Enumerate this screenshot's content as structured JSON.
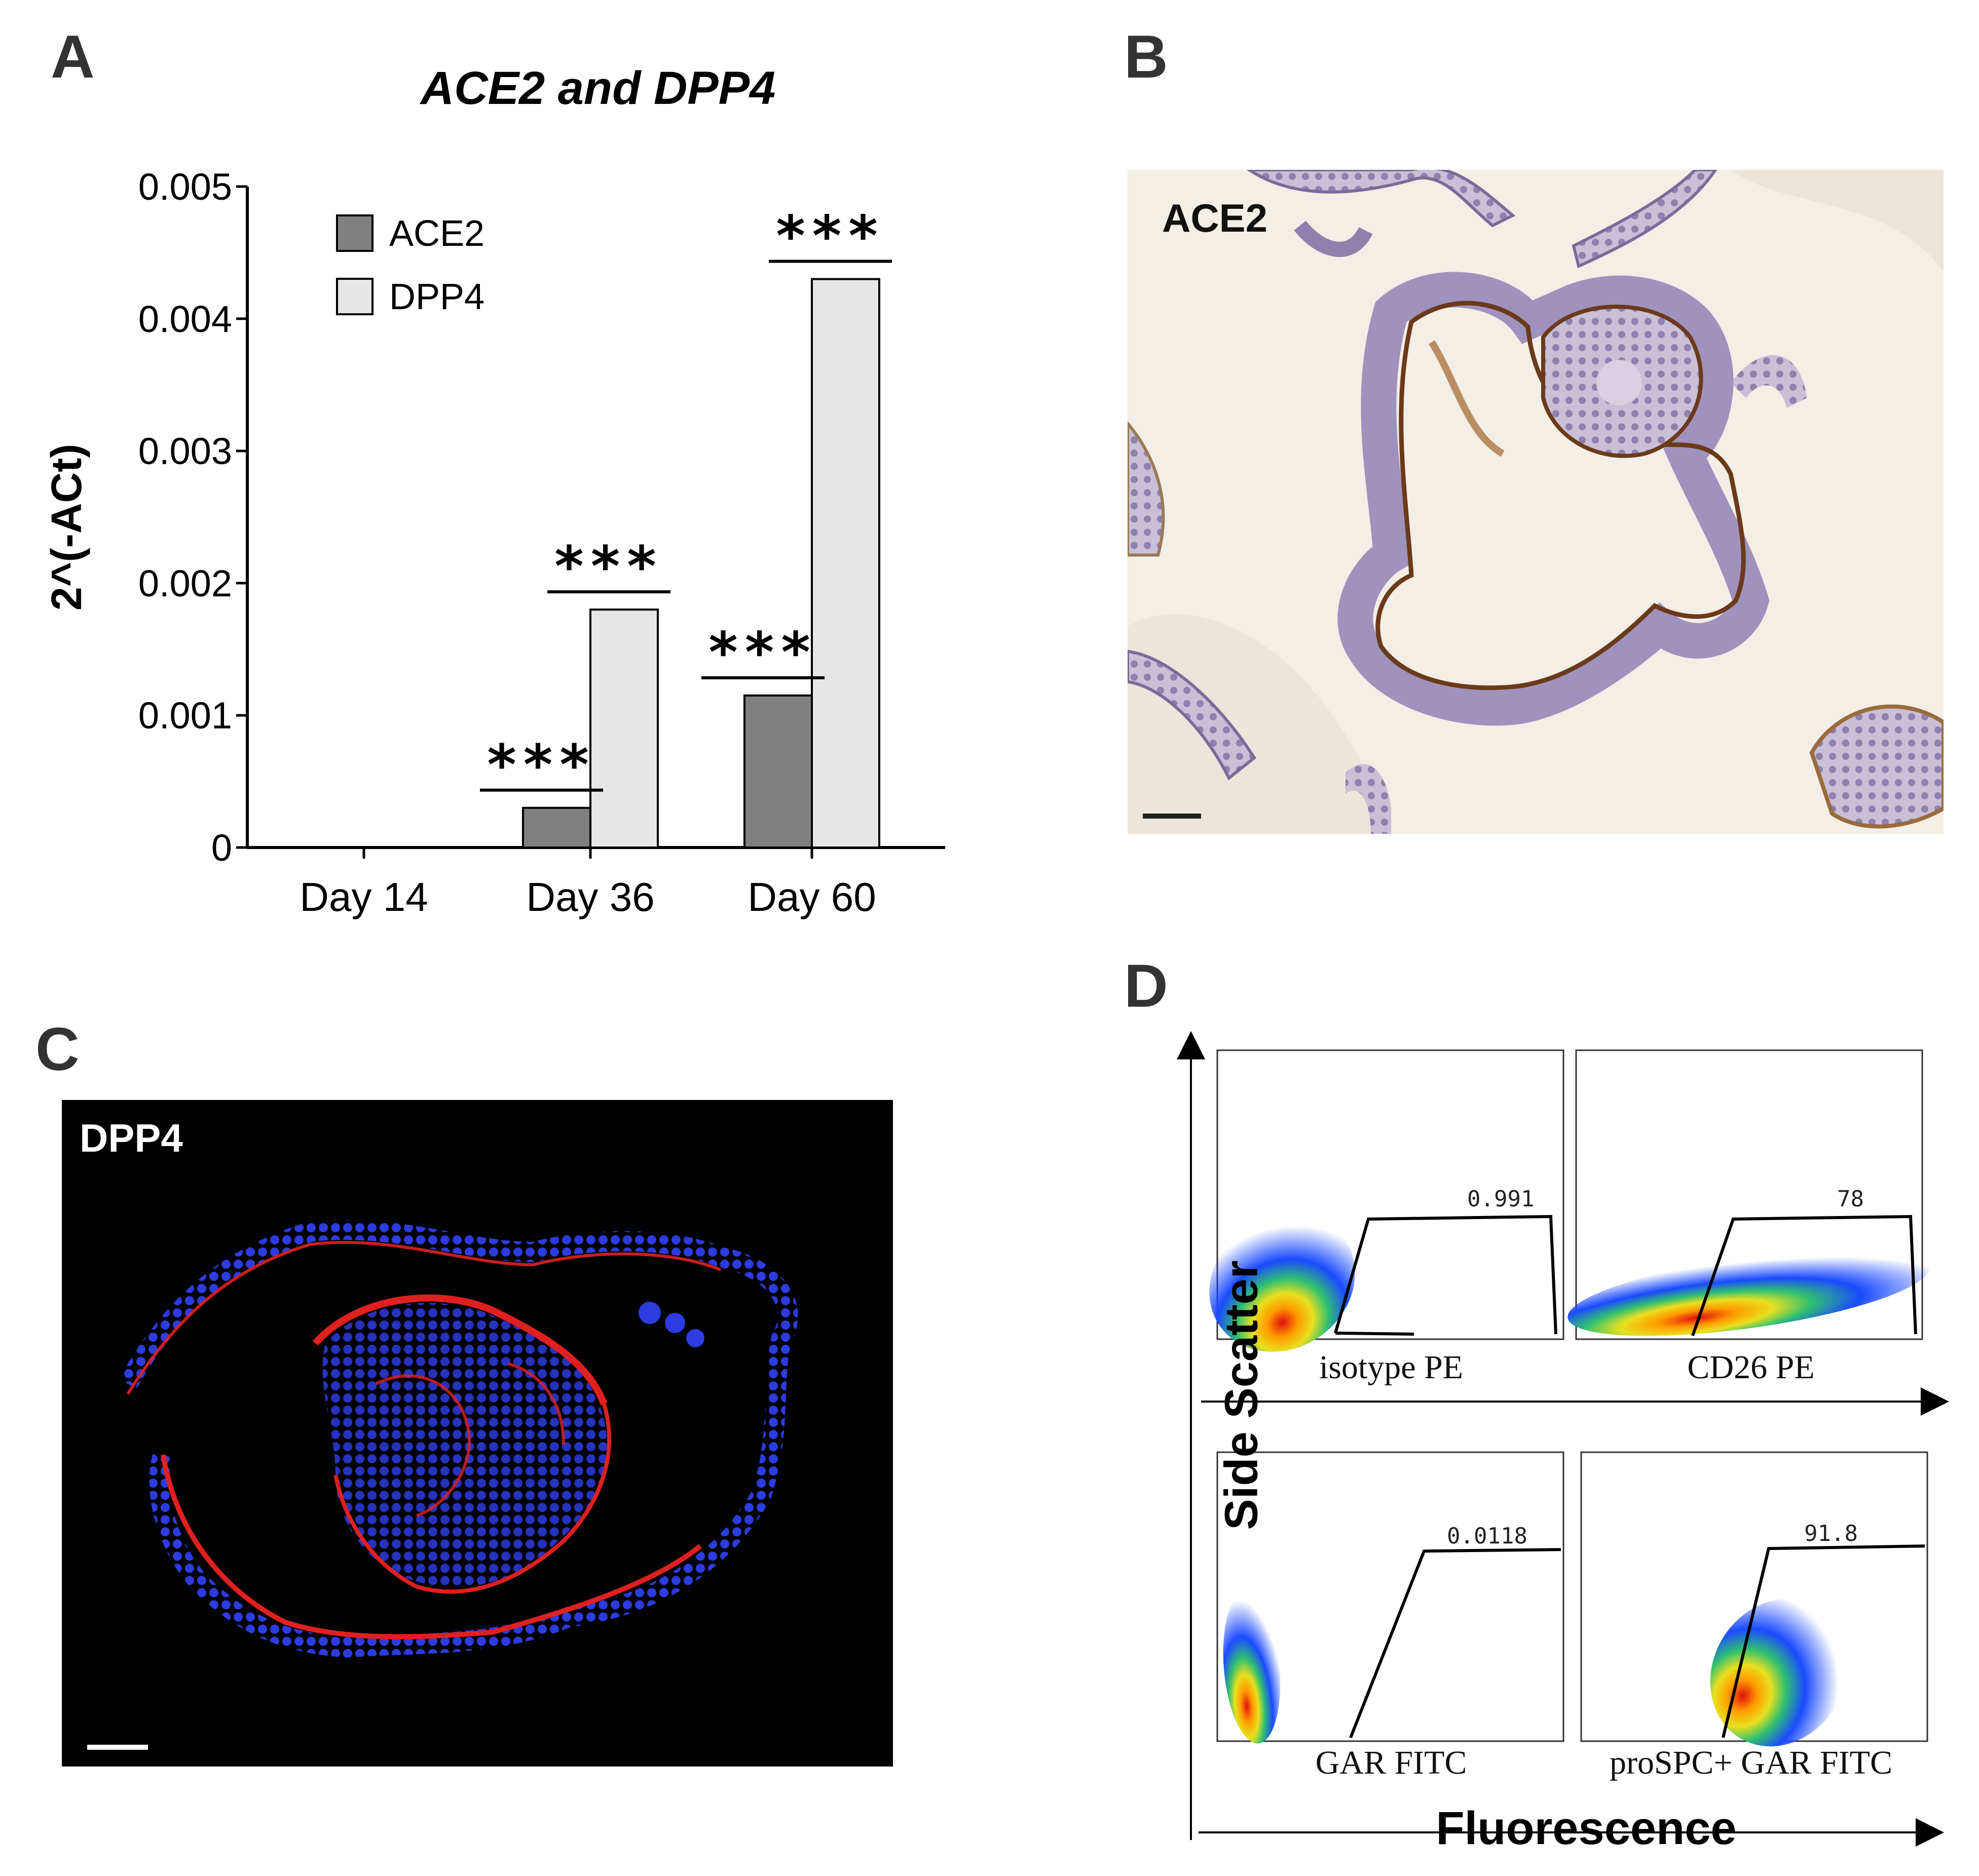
{
  "panels": {
    "a": {
      "letter": "A"
    },
    "b": {
      "letter": "B",
      "label": "ACE2"
    },
    "c": {
      "letter": "C",
      "label": "DPP4"
    },
    "d": {
      "letter": "D",
      "ylabel": "Side Scatter",
      "xlabel": "Fluorescence"
    }
  },
  "chart_data": {
    "type": "bar",
    "title": "ACE2 and DPP4",
    "ylabel": "2^(-ACt)",
    "xlabel": "",
    "categories": [
      "Day 14",
      "Day 36",
      "Day 60"
    ],
    "ylim": [
      0,
      0.005
    ],
    "yticks": [
      "0",
      "0.001",
      "0.002",
      "0.003",
      "0.004",
      "0.005"
    ],
    "series": [
      {
        "name": "ACE2",
        "color": "#808080",
        "values": [
          0,
          0.0003,
          0.00115
        ]
      },
      {
        "name": "DPP4",
        "color": "#e6e6e6",
        "values": [
          0,
          0.0018,
          0.0043
        ]
      }
    ],
    "annotations": [
      {
        "category": "Day 36",
        "series": "ACE2",
        "text": "***"
      },
      {
        "category": "Day 36",
        "series": "DPP4",
        "text": "***"
      },
      {
        "category": "Day 60",
        "series": "ACE2",
        "text": "***"
      },
      {
        "category": "Day 60",
        "series": "DPP4",
        "text": "***"
      }
    ],
    "legend": "top-left",
    "grid": false
  },
  "facs": [
    {
      "caption": "isotype PE",
      "gate_value": "0.991"
    },
    {
      "caption": "CD26 PE",
      "gate_value": "78"
    },
    {
      "caption": "GAR FITC",
      "gate_value": "0.0118"
    },
    {
      "caption": "proSPC+ GAR FITC",
      "gate_value": "91.8"
    }
  ],
  "colors": {
    "ihc_background": "#f3eee6",
    "nuclei": "#2c3ce0",
    "dpp4_stain": "#e02020",
    "ace2_stain": "#8a4a1e"
  }
}
